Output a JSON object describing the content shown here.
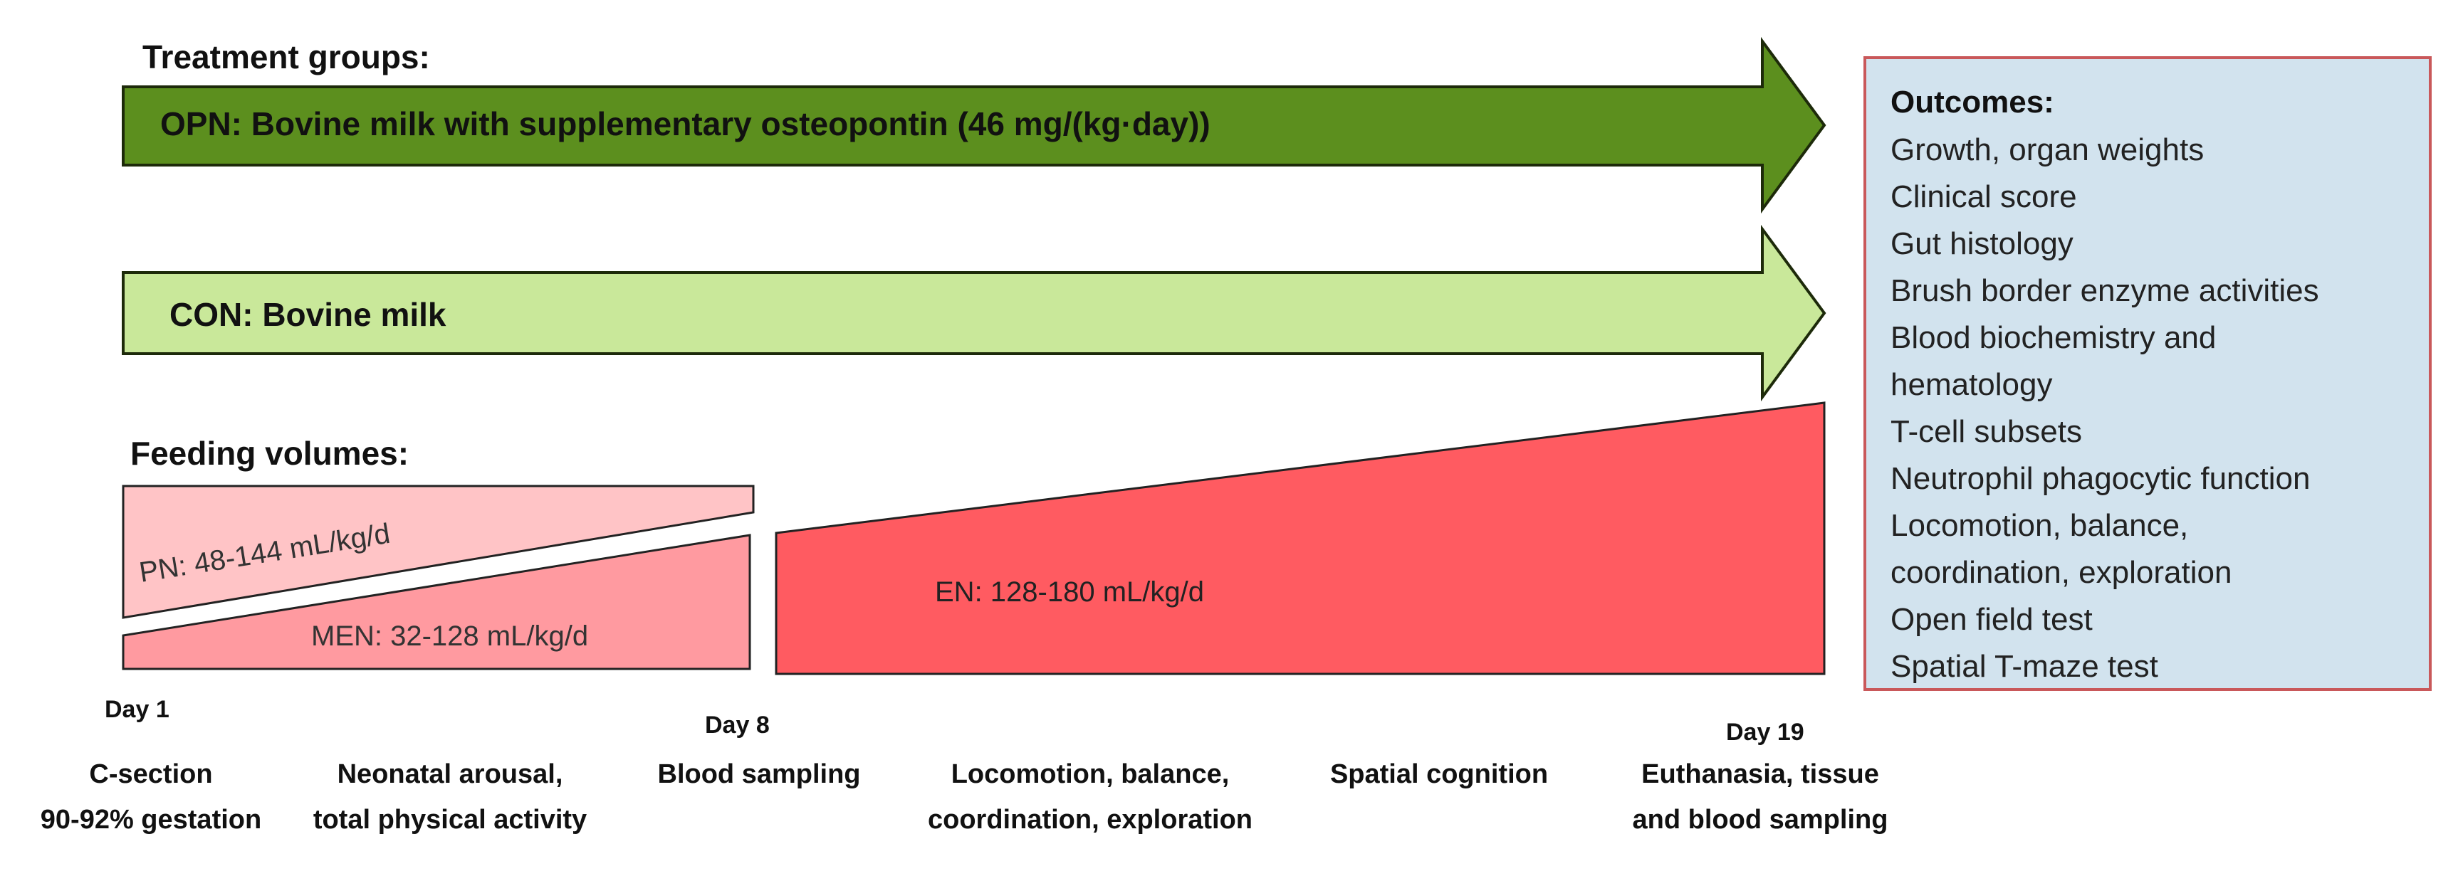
{
  "treatment": {
    "heading": "Treatment groups:",
    "opn_label": "OPN: Bovine milk with supplementary osteopontin (46 mg/(kg·day))",
    "con_label": "CON: Bovine milk"
  },
  "feeding": {
    "heading": "Feeding volumes:",
    "pn_label": "PN: 48-144 mL/kg/d",
    "men_label": "MEN: 32-128 mL/kg/d",
    "en_label": "EN: 128-180 mL/kg/d"
  },
  "outcomes": {
    "title": "Outcomes:",
    "items": [
      "Growth, organ weights",
      "Clinical score",
      "Gut histology",
      "Brush border enzyme activities",
      "Blood biochemistry and",
      "hematology",
      "T-cell subsets",
      "Neutrophil phagocytic function",
      "Locomotion, balance,",
      "coordination, exploration",
      "Open field test",
      "Spatial T-maze test"
    ]
  },
  "timeline": {
    "day1": "Day 1",
    "day8": "Day 8",
    "day19": "Day 19",
    "events": [
      [
        "C-section",
        "90-92% gestation"
      ],
      [
        "Neonatal arousal,",
        "total physical activity"
      ],
      [
        "Blood sampling"
      ],
      [
        "Locomotion, balance,",
        "coordination, exploration"
      ],
      [
        "Spatial cognition"
      ],
      [
        "Euthanasia, tissue",
        "and blood sampling"
      ]
    ]
  },
  "colors": {
    "opn_arrow": "#5c8f1e",
    "con_arrow": "#c9e89a",
    "pn": "#ffc4c6",
    "men": "#ff9aa0",
    "en": "#ff5b61",
    "outcomes_bg": "#d2e3ee",
    "outcomes_border": "#c9585a"
  }
}
